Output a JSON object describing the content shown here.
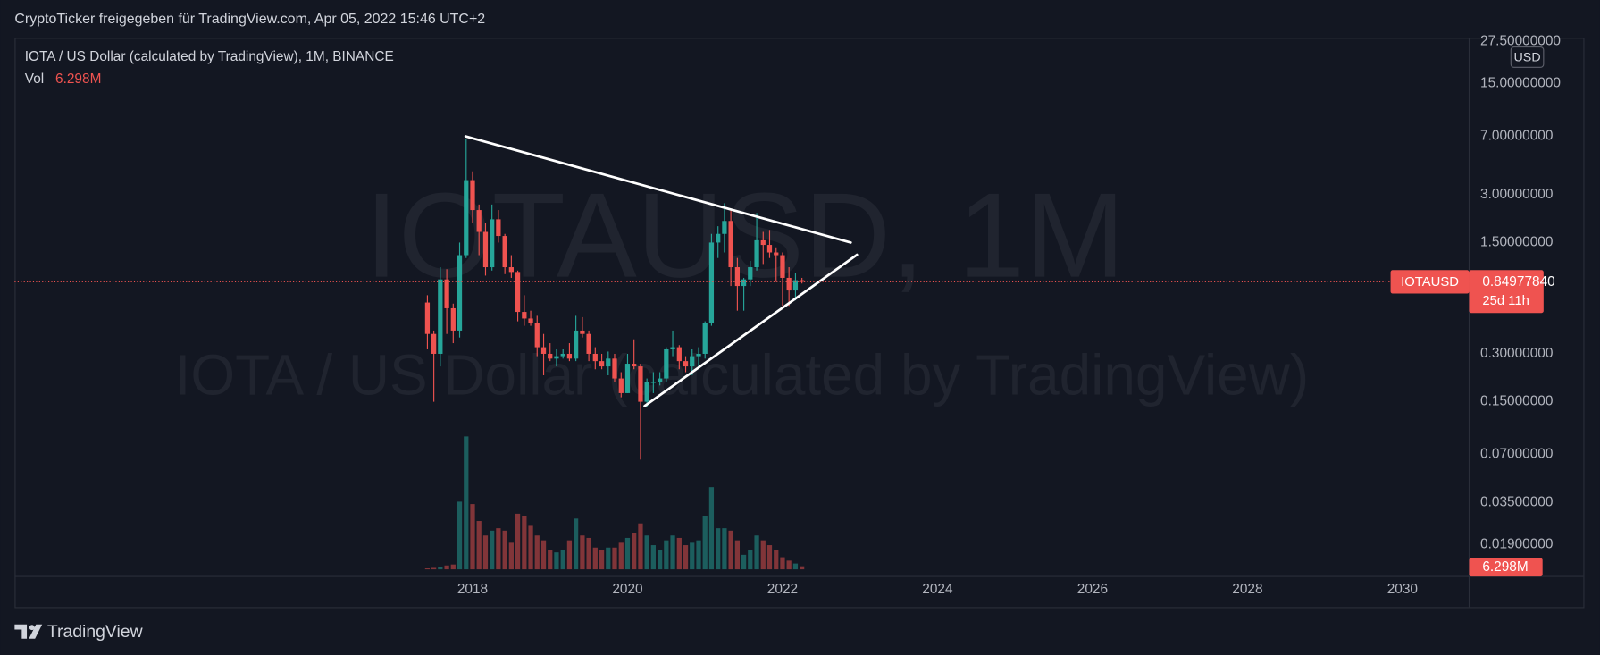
{
  "header": "CryptoTicker freigegeben für TradingView.com, Apr 05, 2022 15:46 UTC+2",
  "footer": "TradingView",
  "chart_data": {
    "type": "candlestick",
    "title": "IOTA / US Dollar (calculated by TradingView), 1M, BINANCE",
    "watermark": "IOTAUSD, 1M",
    "watermark_subtitle": "IOTA / US Dollar (calculated by TradingView)",
    "currency": "USD",
    "log_scale": true,
    "grid": false,
    "up_color": "#26a69a",
    "down_color": "#ef5350",
    "xlim": [
      2012.09,
      2030.86
    ],
    "xticks": [
      2018,
      2020,
      2022,
      2024,
      2026,
      2028,
      2030
    ],
    "ylim": [
      0.0133,
      29
    ],
    "yticks": [
      {
        "value": 27.5,
        "label": "27.50000000"
      },
      {
        "value": 15,
        "label": "15.00000000"
      },
      {
        "value": 7,
        "label": "7.00000000"
      },
      {
        "value": 3,
        "label": "3.00000000"
      },
      {
        "value": 1.5,
        "label": "1.50000000"
      },
      {
        "value": 0.3,
        "label": "0.30000000"
      },
      {
        "value": 0.15,
        "label": "0.15000000"
      },
      {
        "value": 0.07,
        "label": "0.07000000"
      },
      {
        "value": 0.035,
        "label": "0.03500000"
      },
      {
        "value": 0.019,
        "label": "0.01900000"
      }
    ],
    "y2lim": [
      0,
      1100000000
    ],
    "x": [
      2017.417,
      2017.5,
      2017.583,
      2017.667,
      2017.75,
      2017.833,
      2017.917,
      2018,
      2018.083,
      2018.167,
      2018.25,
      2018.333,
      2018.417,
      2018.5,
      2018.583,
      2018.667,
      2018.75,
      2018.833,
      2018.917,
      2019,
      2019.083,
      2019.167,
      2019.25,
      2019.333,
      2019.417,
      2019.5,
      2019.583,
      2019.667,
      2019.75,
      2019.833,
      2019.917,
      2020,
      2020.083,
      2020.167,
      2020.25,
      2020.333,
      2020.417,
      2020.5,
      2020.583,
      2020.667,
      2020.75,
      2020.833,
      2020.917,
      2021,
      2021.083,
      2021.167,
      2021.25,
      2021.333,
      2021.417,
      2021.5,
      2021.583,
      2021.667,
      2021.75,
      2021.833,
      2021.917,
      2022,
      2022.083,
      2022.167,
      2022.25
    ],
    "open": [
      0.63,
      0.4,
      0.3,
      0.88,
      0.58,
      0.42,
      1.25,
      3.7,
      2.4,
      1.75,
      1.05,
      2.1,
      1.65,
      1.05,
      0.98,
      0.55,
      0.5,
      0.47,
      0.33,
      0.3,
      0.28,
      0.29,
      0.3,
      0.28,
      0.42,
      0.4,
      0.3,
      0.27,
      0.25,
      0.28,
      0.21,
      0.17,
      0.26,
      0.25,
      0.15,
      0.2,
      0.2,
      0.21,
      0.32,
      0.33,
      0.27,
      0.25,
      0.29,
      0.3,
      0.47,
      1.5,
      1.7,
      2.05,
      1.05,
      0.8,
      0.88,
      1.05,
      1.55,
      1.45,
      1.3,
      1.25,
      0.9,
      0.75,
      0.87
    ],
    "high": [
      0.7,
      0.42,
      1.05,
      1.02,
      0.62,
      1.5,
      6.7,
      4.2,
      2.6,
      2.0,
      2.6,
      2.4,
      1.7,
      1.25,
      1.0,
      0.7,
      0.56,
      0.52,
      0.4,
      0.35,
      0.32,
      0.32,
      0.35,
      0.52,
      0.51,
      0.42,
      0.33,
      0.3,
      0.31,
      0.3,
      0.23,
      0.3,
      0.37,
      0.26,
      0.21,
      0.23,
      0.23,
      0.33,
      0.42,
      0.34,
      0.29,
      0.32,
      0.33,
      0.48,
      1.7,
      1.9,
      2.65,
      2.45,
      1.2,
      0.9,
      1.15,
      2.3,
      1.75,
      1.8,
      1.4,
      1.3,
      1.05,
      0.96,
      0.9
    ],
    "low": [
      0.32,
      0.15,
      0.25,
      0.4,
      0.35,
      0.38,
      1.2,
      2.0,
      1.25,
      0.93,
      1.0,
      1.5,
      0.95,
      0.9,
      0.48,
      0.45,
      0.45,
      0.29,
      0.22,
      0.27,
      0.25,
      0.28,
      0.27,
      0.27,
      0.38,
      0.27,
      0.24,
      0.24,
      0.22,
      0.2,
      0.16,
      0.17,
      0.24,
      0.065,
      0.14,
      0.17,
      0.19,
      0.2,
      0.29,
      0.24,
      0.23,
      0.22,
      0.25,
      0.28,
      0.45,
      1.2,
      1.3,
      0.8,
      0.56,
      0.56,
      0.8,
      1.0,
      1.1,
      1.2,
      0.85,
      0.6,
      0.6,
      0.65,
      0.83
    ],
    "close": [
      0.4,
      0.3,
      0.88,
      0.58,
      0.42,
      1.25,
      3.7,
      2.4,
      1.75,
      1.05,
      2.1,
      1.65,
      1.05,
      0.98,
      0.55,
      0.5,
      0.47,
      0.33,
      0.3,
      0.28,
      0.29,
      0.3,
      0.28,
      0.42,
      0.4,
      0.3,
      0.27,
      0.25,
      0.28,
      0.21,
      0.17,
      0.26,
      0.25,
      0.15,
      0.2,
      0.2,
      0.21,
      0.32,
      0.33,
      0.27,
      0.25,
      0.29,
      0.3,
      0.47,
      1.5,
      1.7,
      2.05,
      1.05,
      0.8,
      0.88,
      1.05,
      1.55,
      1.45,
      1.3,
      1.25,
      0.9,
      0.75,
      0.87,
      0.8497784
    ],
    "volume": {
      "name": "Vol",
      "axis": "y2",
      "values": [
        2000000,
        3000000,
        5000000,
        8000000,
        10000000,
        140000000,
        275000000,
        135000000,
        100000000,
        70000000,
        80000000,
        85000000,
        80000000,
        55000000,
        115000000,
        110000000,
        90000000,
        70000000,
        60000000,
        40000000,
        35000000,
        40000000,
        60000000,
        105000000,
        70000000,
        65000000,
        45000000,
        40000000,
        45000000,
        45000000,
        55000000,
        65000000,
        75000000,
        95000000,
        70000000,
        50000000,
        40000000,
        60000000,
        70000000,
        65000000,
        50000000,
        55000000,
        60000000,
        110000000,
        170000000,
        85000000,
        85000000,
        80000000,
        60000000,
        30000000,
        40000000,
        70000000,
        60000000,
        50000000,
        40000000,
        25000000,
        18000000,
        12000000,
        6298000
      ],
      "value_labels": [
        null,
        null,
        null,
        null,
        null,
        null,
        null,
        null,
        null,
        null,
        null,
        null,
        null,
        null,
        null,
        null,
        null,
        null,
        null,
        null,
        null,
        null,
        null,
        null,
        null,
        null,
        null,
        null,
        null,
        null,
        null,
        null,
        null,
        null,
        null,
        null,
        null,
        null,
        null,
        null,
        null,
        null,
        null,
        null,
        null,
        null,
        null,
        null,
        null,
        null,
        null,
        null,
        null,
        null,
        null,
        null,
        null,
        null,
        "6.298M"
      ]
    },
    "price_line": {
      "symbol": "IOTAUSD",
      "value": 0.8497784,
      "label": "0.84977840",
      "countdown": "25d 11h"
    },
    "trendlines": [
      {
        "x": [
          2017.91,
          2022.88
        ],
        "y": [
          6.97,
          1.5
        ]
      },
      {
        "x": [
          2020.22,
          2022.96
        ],
        "y": [
          0.141,
          1.257
        ]
      }
    ]
  }
}
